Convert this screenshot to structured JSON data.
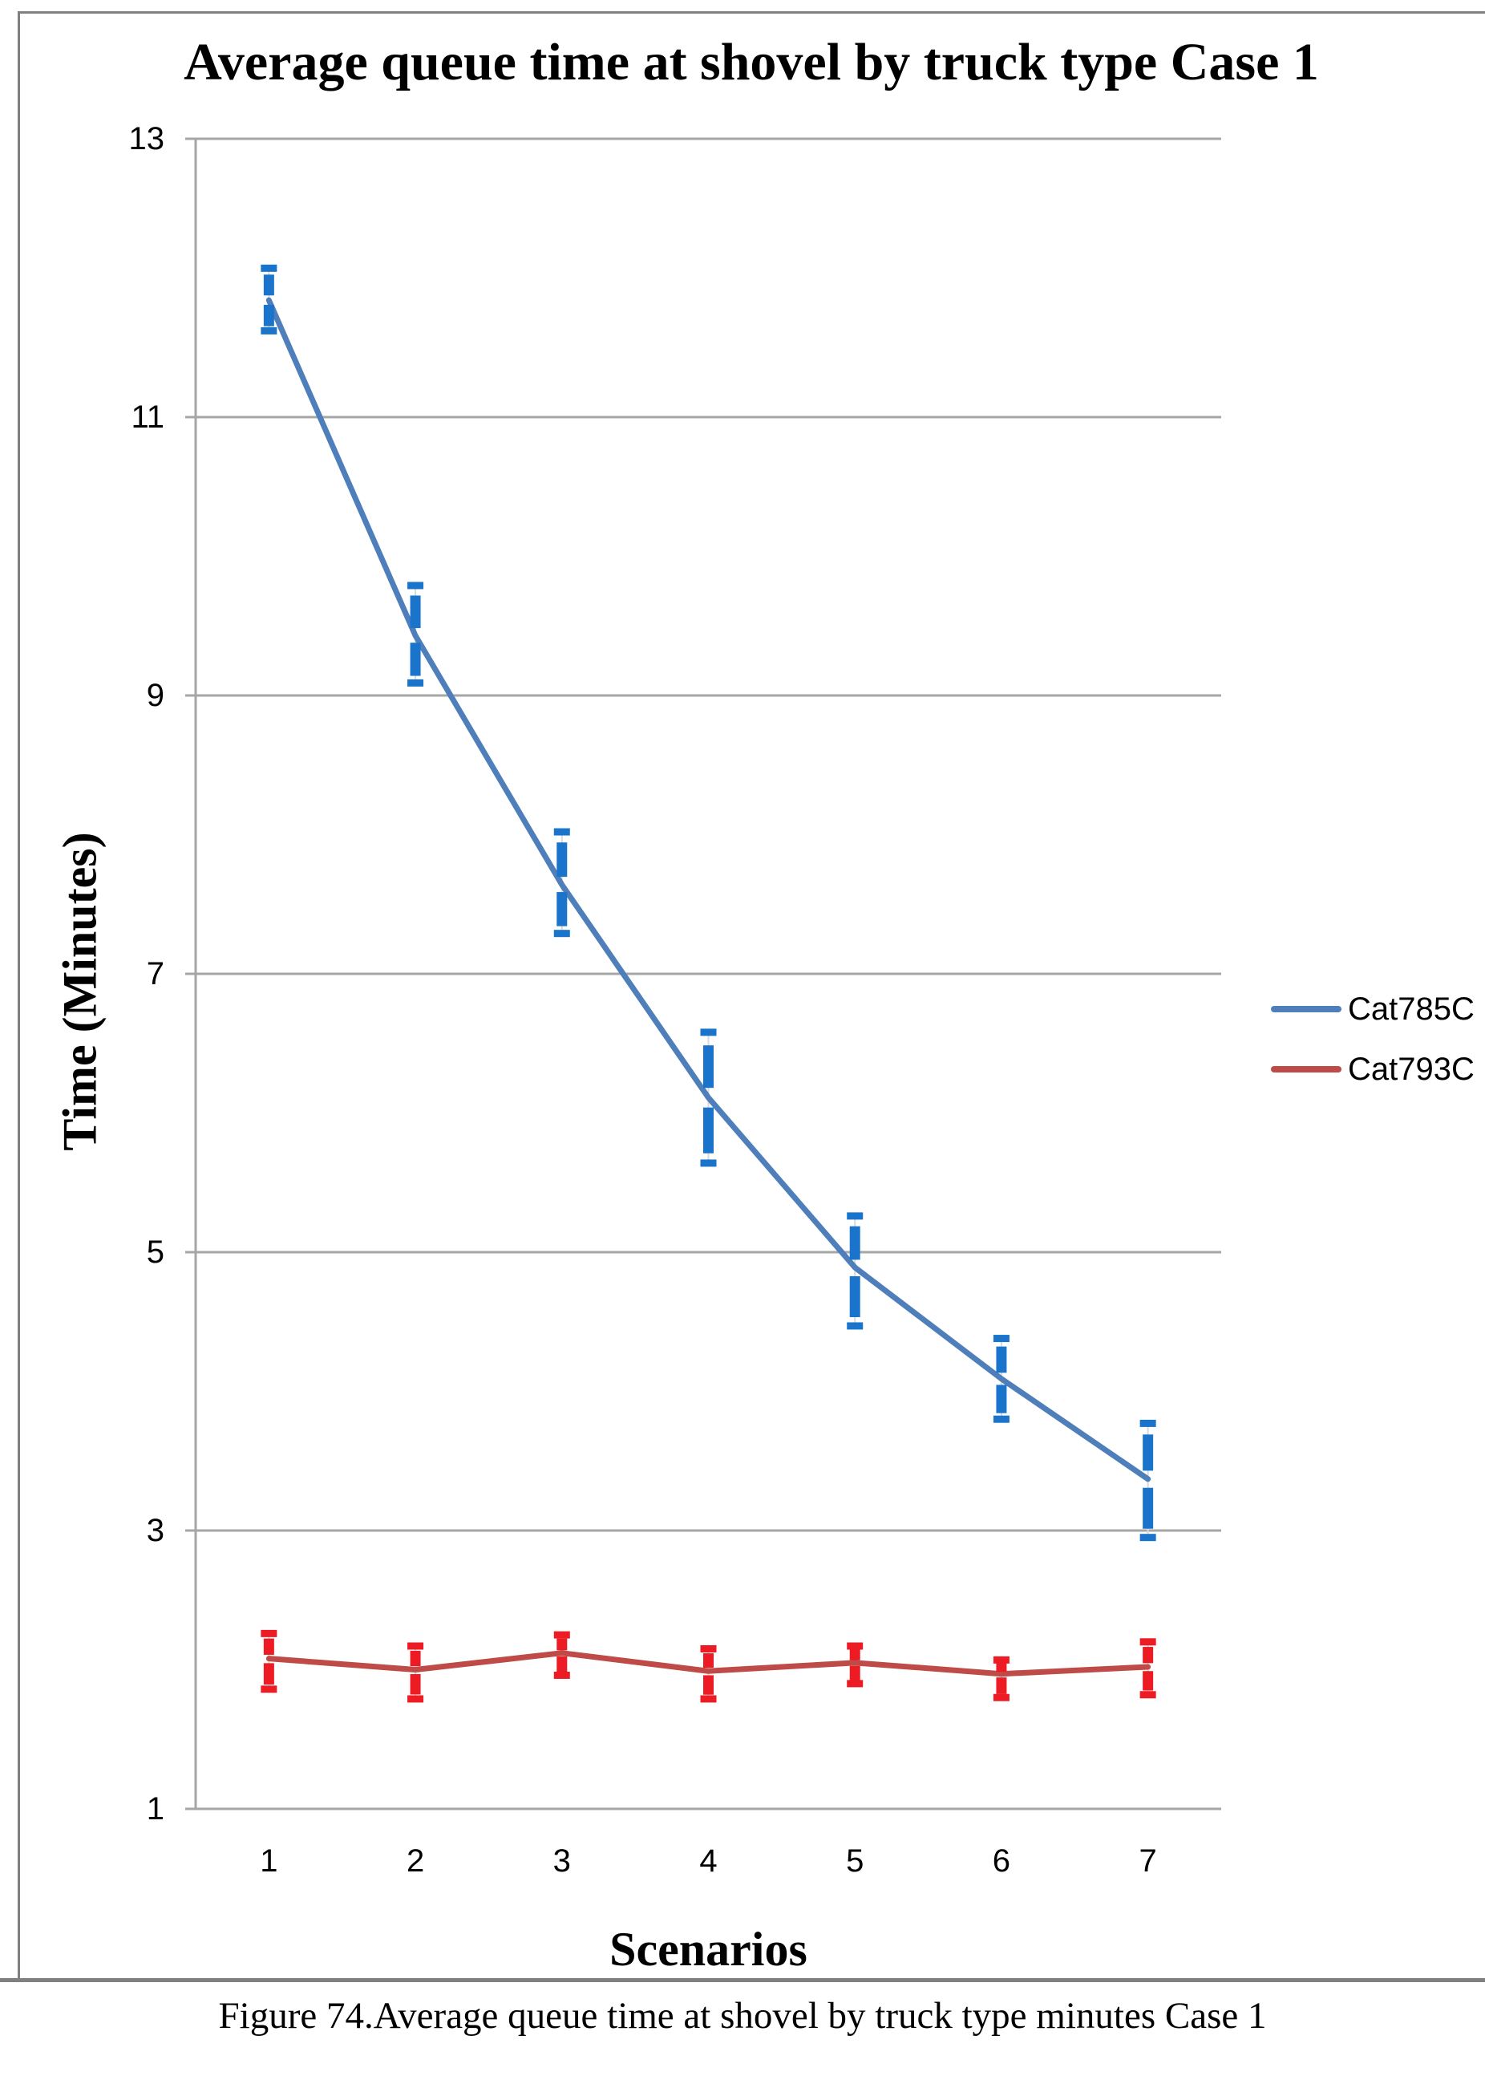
{
  "figure": {
    "caption": "Figure 74.Average queue time at shovel by truck type minutes Case 1"
  },
  "chart_data": {
    "type": "line",
    "title": "Average queue time at shovel by truck type Case 1",
    "xlabel": "Scenarios",
    "ylabel": "Time (Minutes)",
    "categories": [
      "1",
      "2",
      "3",
      "4",
      "5",
      "6",
      "7"
    ],
    "y_ticks": [
      "13",
      "11",
      "9",
      "7",
      "5",
      "3",
      "1"
    ],
    "y_tick_values": [
      13,
      11,
      9,
      7,
      5,
      3,
      1
    ],
    "ylim": [
      1,
      13
    ],
    "grid": "horizontal",
    "legend_position": "right",
    "error_bars": "both-directions-with-caps",
    "series": [
      {
        "name": "Cat785C",
        "color": "#4E7FBA",
        "error_color": "#1B74CB",
        "values": [
          11.84,
          9.43,
          7.64,
          6.11,
          4.89,
          4.09,
          3.37
        ],
        "error_low": [
          11.62,
          9.09,
          7.29,
          5.64,
          4.47,
          3.8,
          2.95
        ],
        "error_high": [
          12.07,
          9.79,
          8.02,
          6.58,
          5.26,
          4.38,
          3.77
        ]
      },
      {
        "name": "Cat793C",
        "color": "#BE4B48",
        "error_color": "#ED1B23",
        "values": [
          2.08,
          2.0,
          2.12,
          1.99,
          2.05,
          1.97,
          2.02
        ],
        "error_low": [
          1.86,
          1.79,
          1.96,
          1.79,
          1.9,
          1.8,
          1.82
        ],
        "error_high": [
          2.26,
          2.17,
          2.25,
          2.15,
          2.17,
          2.07,
          2.2
        ]
      }
    ]
  },
  "colors": {
    "grid": "#A6A6A6",
    "page_border": "#808080",
    "error_connector": "#D9D9D9",
    "text": "#000000"
  }
}
